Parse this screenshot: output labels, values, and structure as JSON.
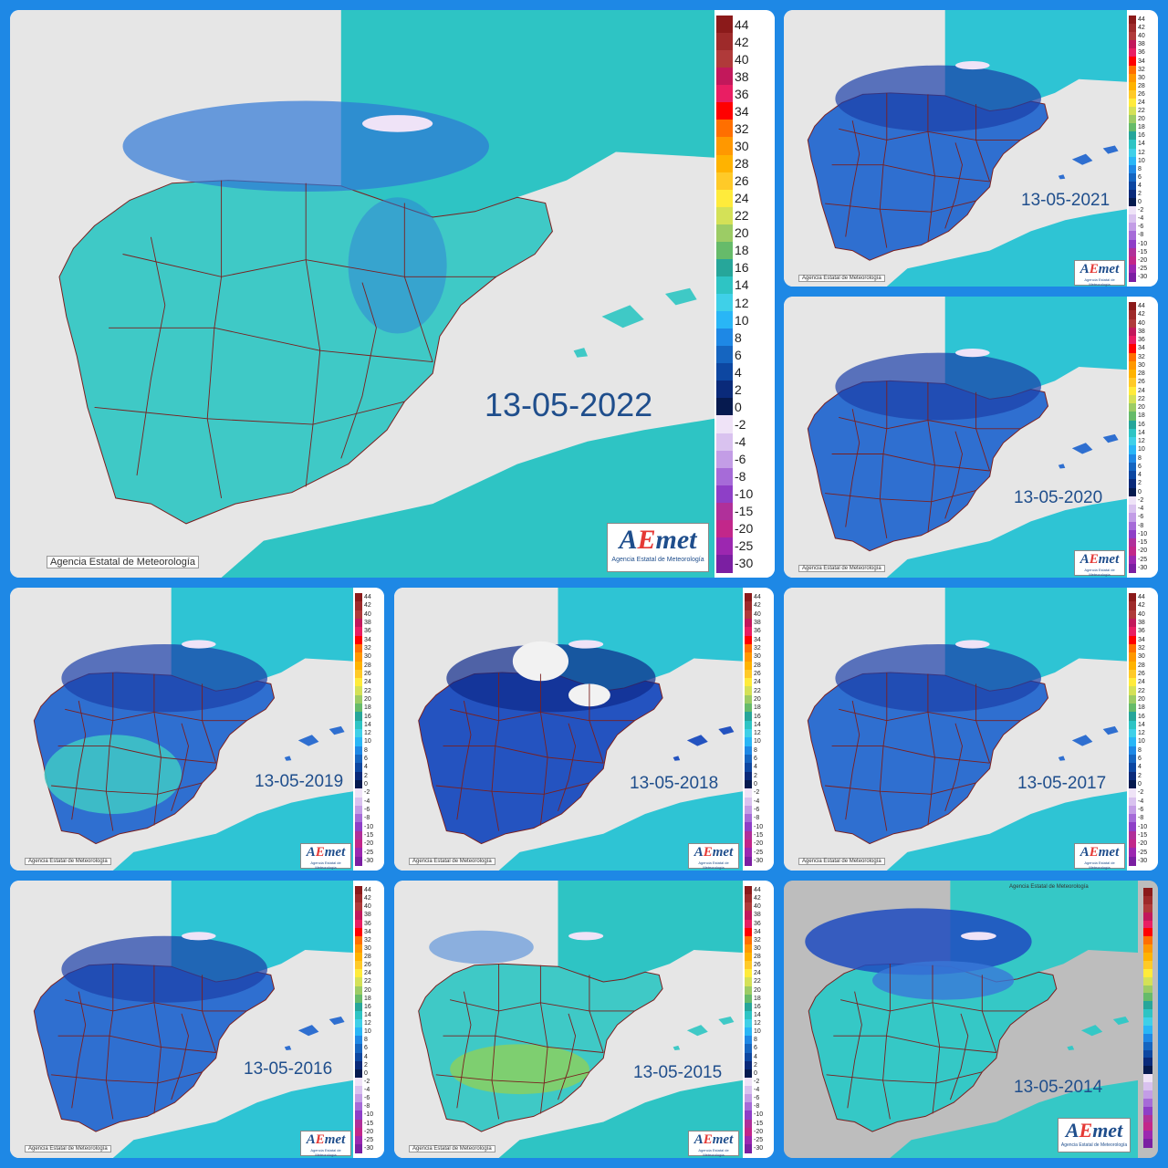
{
  "credit": "Agencia Estatal de Meteorología",
  "logo": {
    "word_a": "A",
    "word_e": "E",
    "word_rest": "met",
    "subtitle": "Agencia Estatal de Meteorología"
  },
  "legend": {
    "labels": [
      "44",
      "42",
      "40",
      "38",
      "36",
      "34",
      "32",
      "30",
      "28",
      "26",
      "24",
      "22",
      "20",
      "18",
      "16",
      "14",
      "12",
      "10",
      "8",
      "6",
      "4",
      "2",
      "0",
      "-2",
      "-4",
      "-6",
      "-8",
      "-10",
      "-15",
      "-20",
      "-25",
      "-30"
    ]
  },
  "maps": [
    {
      "date": "13-05-2022",
      "style": "teal"
    },
    {
      "date": "13-05-2021",
      "style": "blue"
    },
    {
      "date": "13-05-2020",
      "style": "blue"
    },
    {
      "date": "13-05-2019",
      "style": "mixed"
    },
    {
      "date": "13-05-2018",
      "style": "deep"
    },
    {
      "date": "13-05-2017",
      "style": "blue"
    },
    {
      "date": "13-05-2016",
      "style": "blue"
    },
    {
      "date": "13-05-2015",
      "style": "warm"
    },
    {
      "date": "13-05-2014",
      "style": "grey"
    }
  ],
  "colors": {
    "frame": "#1e88e5",
    "land_teal": "#3fc9c6",
    "land_blue": "#2f77d6",
    "land_deep": "#2a57c4",
    "sea_bg": "#e6e6e6",
    "border": "#7a1f1f"
  }
}
